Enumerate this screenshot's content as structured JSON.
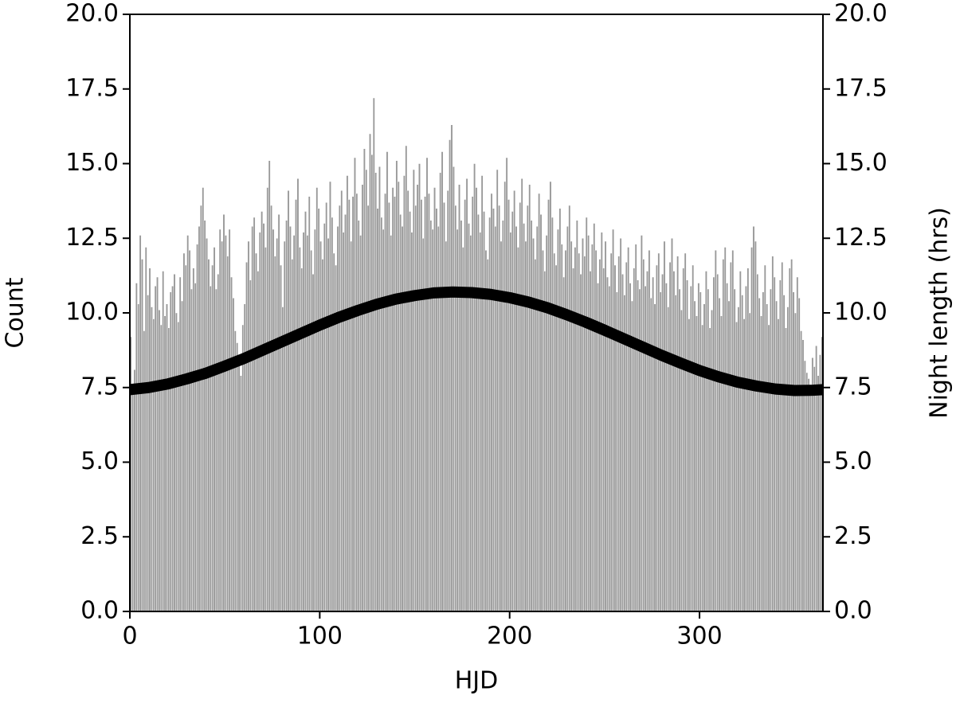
{
  "chart_data": {
    "type": "histogram",
    "xlabel": "HJD",
    "ylabel": "Count",
    "y2label": "Night length (hrs)",
    "color": "#999999",
    "bins": [
      0,
      1,
      2,
      3,
      4,
      5,
      6,
      7,
      8,
      9,
      10,
      11,
      12,
      13,
      14,
      15,
      16,
      17,
      18,
      19,
      20,
      21,
      22,
      23,
      24,
      25,
      26,
      27,
      28,
      29,
      30,
      31,
      32,
      33,
      34,
      35,
      36,
      37,
      38,
      39,
      40,
      41,
      42,
      43,
      44,
      45,
      46,
      47,
      48,
      49,
      50,
      51,
      52,
      53,
      54,
      55,
      56,
      57,
      58,
      59,
      60,
      61,
      62,
      63,
      64,
      65,
      66,
      67,
      68,
      69,
      70,
      71,
      72,
      73,
      74,
      75,
      76,
      77,
      78,
      79,
      80,
      81,
      82,
      83,
      84,
      85,
      86,
      87,
      88,
      89,
      90,
      91,
      92,
      93,
      94,
      95,
      96,
      97,
      98,
      99,
      100,
      101,
      102,
      103,
      104,
      105,
      106,
      107,
      108,
      109,
      110,
      111,
      112,
      113,
      114,
      115,
      116,
      117,
      118,
      119,
      120,
      121,
      122,
      123,
      124,
      125,
      126,
      127,
      128,
      129,
      130,
      131,
      132,
      133,
      134,
      135,
      136,
      137,
      138,
      139,
      140,
      141,
      142,
      143,
      144,
      145,
      146,
      147,
      148,
      149,
      150,
      151,
      152,
      153,
      154,
      155,
      156,
      157,
      158,
      159,
      160,
      161,
      162,
      163,
      164,
      165,
      166,
      167,
      168,
      169,
      170,
      171,
      172,
      173,
      174,
      175,
      176,
      177,
      178,
      179,
      180,
      181,
      182,
      183,
      184,
      185,
      186,
      187,
      188,
      189,
      190,
      191,
      192,
      193,
      194,
      195,
      196,
      197,
      198,
      199,
      200,
      201,
      202,
      203,
      204,
      205,
      206,
      207,
      208,
      209,
      210,
      211,
      212,
      213,
      214,
      215,
      216,
      217,
      218,
      219,
      220,
      221,
      222,
      223,
      224,
      225,
      226,
      227,
      228,
      229,
      230,
      231,
      232,
      233,
      234,
      235,
      236,
      237,
      238,
      239,
      240,
      241,
      242,
      243,
      244,
      245,
      246,
      247,
      248,
      249,
      250,
      251,
      252,
      253,
      254,
      255,
      256,
      257,
      258,
      259,
      260,
      261,
      262,
      263,
      264,
      265,
      266,
      267,
      268,
      269,
      270,
      271,
      272,
      273,
      274,
      275,
      276,
      277,
      278,
      279,
      280,
      281,
      282,
      283,
      284,
      285,
      286,
      287,
      288,
      289,
      290,
      291,
      292,
      293,
      294,
      295,
      296,
      297,
      298,
      299,
      300,
      301,
      302,
      303,
      304,
      305,
      306,
      307,
      308,
      309,
      310,
      311,
      312,
      313,
      314,
      315,
      316,
      317,
      318,
      319,
      320,
      321,
      322,
      323,
      324,
      325,
      326,
      327,
      328,
      329,
      330,
      331,
      332,
      333,
      334,
      335,
      336,
      337,
      338,
      339,
      340,
      341,
      342,
      343,
      344,
      345,
      346,
      347,
      348,
      349,
      350,
      351,
      352,
      353,
      354,
      355,
      356,
      357,
      358,
      359,
      360,
      361,
      362,
      363,
      364,
      365
    ],
    "values": [
      9.2,
      7.6,
      8.1,
      11.0,
      10.3,
      12.6,
      11.8,
      9.4,
      12.2,
      10.6,
      11.5,
      10.2,
      9.8,
      10.9,
      11.2,
      10.1,
      9.6,
      11.4,
      9.9,
      10.3,
      9.5,
      10.7,
      10.9,
      11.3,
      10.0,
      9.7,
      11.2,
      10.4,
      12.0,
      11.6,
      12.6,
      12.1,
      10.8,
      11.5,
      11.0,
      12.3,
      12.9,
      13.6,
      14.2,
      13.1,
      12.5,
      11.8,
      10.9,
      11.6,
      12.2,
      10.8,
      11.3,
      12.8,
      12.4,
      13.3,
      12.6,
      11.9,
      12.8,
      11.2,
      10.5,
      9.4,
      9.0,
      8.3,
      7.9,
      9.6,
      10.3,
      11.7,
      12.4,
      11.1,
      12.9,
      13.2,
      12.0,
      11.4,
      12.7,
      13.4,
      13.0,
      12.2,
      14.2,
      15.1,
      13.6,
      12.8,
      11.9,
      12.5,
      13.3,
      11.6,
      10.2,
      12.4,
      13.1,
      14.1,
      12.9,
      11.8,
      12.6,
      13.8,
      14.5,
      12.2,
      11.5,
      12.7,
      13.4,
      12.6,
      13.9,
      12.1,
      11.3,
      12.8,
      14.2,
      13.5,
      12.4,
      11.8,
      13.0,
      13.7,
      12.5,
      14.4,
      13.2,
      12.0,
      11.6,
      12.9,
      13.6,
      14.1,
      12.7,
      13.3,
      14.6,
      13.8,
      12.4,
      13.9,
      15.2,
      14.0,
      13.1,
      12.6,
      14.3,
      15.5,
      14.8,
      13.6,
      16.0,
      15.3,
      17.2,
      14.7,
      13.5,
      14.9,
      13.2,
      12.8,
      14.0,
      15.4,
      13.7,
      12.6,
      14.2,
      13.9,
      15.1,
      14.4,
      13.3,
      12.9,
      14.6,
      15.6,
      14.1,
      13.4,
      12.7,
      14.8,
      13.6,
      14.3,
      15.0,
      13.8,
      12.5,
      13.9,
      15.2,
      14.0,
      13.1,
      12.8,
      14.2,
      13.5,
      12.9,
      14.7,
      15.4,
      13.7,
      12.4,
      14.1,
      15.8,
      16.3,
      14.9,
      13.6,
      12.8,
      14.3,
      13.1,
      12.2,
      13.8,
      14.5,
      13.0,
      12.6,
      13.9,
      15.0,
      14.2,
      13.3,
      12.7,
      14.6,
      13.4,
      12.1,
      11.8,
      13.2,
      14.0,
      13.5,
      12.9,
      14.8,
      13.6,
      12.4,
      13.1,
      14.4,
      15.2,
      13.8,
      12.7,
      13.4,
      14.1,
      12.9,
      12.2,
      13.7,
      14.5,
      13.0,
      12.4,
      13.6,
      14.3,
      13.1,
      12.5,
      11.8,
      12.9,
      14.0,
      13.3,
      12.1,
      11.4,
      12.6,
      13.8,
      14.4,
      13.2,
      12.0,
      11.6,
      12.8,
      13.5,
      12.3,
      11.2,
      12.1,
      12.9,
      13.6,
      12.4,
      11.5,
      12.2,
      13.1,
      12.0,
      11.3,
      12.5,
      11.9,
      13.2,
      12.6,
      11.4,
      12.3,
      13.0,
      12.1,
      11.0,
      11.8,
      12.7,
      11.5,
      12.4,
      11.2,
      10.9,
      12.0,
      12.8,
      11.6,
      10.7,
      11.9,
      12.5,
      11.3,
      10.6,
      11.7,
      12.2,
      11.0,
      10.4,
      11.5,
      12.3,
      11.1,
      10.8,
      12.6,
      11.8,
      10.9,
      11.4,
      12.1,
      10.5,
      11.2,
      10.3,
      11.6,
      12.0,
      10.7,
      11.3,
      12.4,
      11.0,
      10.2,
      11.7,
      12.5,
      11.4,
      10.6,
      11.9,
      10.8,
      10.1,
      11.5,
      12.0,
      11.1,
      9.8,
      10.9,
      11.6,
      10.4,
      9.9,
      11.0,
      10.7,
      9.6,
      10.3,
      11.4,
      10.8,
      9.5,
      10.1,
      11.2,
      12.1,
      11.3,
      10.5,
      9.9,
      11.8,
      12.2,
      11.0,
      10.4,
      11.7,
      12.1,
      10.8,
      9.7,
      10.2,
      11.4,
      10.6,
      9.8,
      10.9,
      11.5,
      10.0,
      12.2,
      12.9,
      12.4,
      11.3,
      10.5,
      9.9,
      10.7,
      11.6,
      10.3,
      9.6,
      10.8,
      11.9,
      11.2,
      10.4,
      9.8,
      11.1,
      11.7,
      10.6,
      9.5,
      10.2,
      11.5,
      11.8,
      10.7,
      10.0,
      11.2,
      10.5,
      9.4,
      9.1,
      8.4,
      8.0,
      7.8,
      7.6,
      8.5,
      8.2,
      8.9,
      7.9,
      8.6,
      9.2
    ],
    "xlim": [
      0,
      365
    ],
    "xticks": [
      0,
      100,
      200,
      300
    ],
    "ylim": [
      0,
      20
    ],
    "yticks": [
      {
        "value": 0,
        "label": "0.0"
      },
      2.5,
      {
        "value": 5,
        "label": "5.0"
      },
      7.5,
      {
        "value": 10,
        "label": "10.0"
      },
      12.5,
      {
        "value": 15,
        "label": "15.0"
      },
      17.5,
      {
        "value": 20,
        "label": "20.0"
      }
    ],
    "y2lim": [
      0,
      20
    ],
    "y2ticks": [
      {
        "value": 0,
        "label": "0.0"
      },
      2.5,
      {
        "value": 5,
        "label": "5.0"
      },
      7.5,
      {
        "value": 10,
        "label": "10.0"
      },
      12.5,
      {
        "value": 15,
        "label": "15.0"
      },
      17.5,
      {
        "value": 20,
        "label": "20.0"
      }
    ],
    "overlay": {
      "type": "line",
      "axis": "y2",
      "color": "#000000",
      "x": [
        0,
        10,
        20,
        30,
        40,
        50,
        60,
        70,
        80,
        90,
        100,
        110,
        120,
        130,
        140,
        150,
        160,
        170,
        180,
        190,
        200,
        210,
        220,
        230,
        240,
        250,
        260,
        270,
        280,
        290,
        300,
        310,
        320,
        330,
        340,
        350,
        360,
        365
      ],
      "values": [
        7.43,
        7.5,
        7.62,
        7.79,
        7.98,
        8.22,
        8.47,
        8.75,
        9.03,
        9.31,
        9.59,
        9.85,
        10.08,
        10.29,
        10.46,
        10.58,
        10.67,
        10.7,
        10.68,
        10.62,
        10.51,
        10.36,
        10.17,
        9.94,
        9.69,
        9.42,
        9.14,
        8.86,
        8.58,
        8.32,
        8.07,
        7.86,
        7.68,
        7.55,
        7.45,
        7.4,
        7.41,
        7.43
      ]
    }
  }
}
